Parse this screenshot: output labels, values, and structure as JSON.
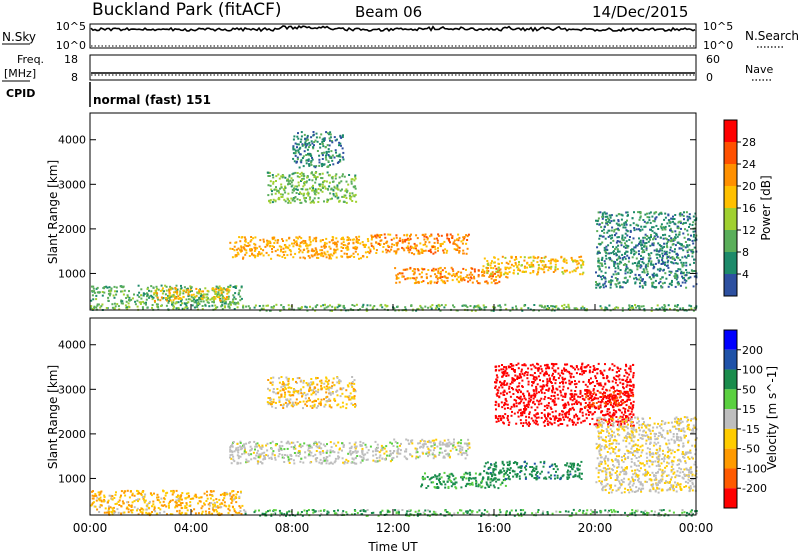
{
  "header": {
    "station": "Buckland Park (fitACF)",
    "beam": "Beam 06",
    "date": "14/Dec/2015"
  },
  "side_labels": {
    "nsky": "N.Sky",
    "nsearch": "N.Search",
    "freq_line1": "Freq.",
    "freq_line2": "[MHz]",
    "nave": "Nave",
    "cpid": "CPID",
    "cpid_text": "normal (fast) 151"
  },
  "noise_panel": {
    "left_ticks": [
      "10^5",
      "10^0"
    ],
    "right_ticks": [
      "10^5",
      "10^0"
    ]
  },
  "freq_panel": {
    "left_ticks": [
      "18",
      "8"
    ],
    "right_ticks": [
      "60",
      "0"
    ]
  },
  "colors": {
    "power_scale": [
      "#0000ff",
      "#2d50a0",
      "#1d8a6a",
      "#5aae5a",
      "#a0d030",
      "#ffc000",
      "#ff9000",
      "#ff5000",
      "#ff0000"
    ],
    "velocity_scale": [
      "#0000ff",
      "#1f52a8",
      "#1a8c4c",
      "#5bd040",
      "#bebebe",
      "#ffcc00",
      "#ff9a00",
      "#ff5a00",
      "#ff0000"
    ]
  },
  "chart_data": [
    {
      "type": "heatmap",
      "panel": "power",
      "xlabel": "Time UT",
      "ylabel": "Slant Range [km]",
      "x_ticks": [
        "00:00",
        "04:00",
        "08:00",
        "12:00",
        "16:00",
        "20:00",
        "00:00"
      ],
      "x_range_hours": [
        0,
        24
      ],
      "y_ticks": [
        1000,
        2000,
        3000,
        4000
      ],
      "ylim": [
        180,
        4600
      ],
      "colorbar_label": "Power [dB]",
      "colorbar_ticks": [
        4,
        8,
        12,
        16,
        20,
        24,
        28
      ],
      "colorbar_range": [
        0,
        32
      ],
      "echo_regions": [
        {
          "t0": 0.0,
          "t1": 6.0,
          "r0": 200,
          "r1": 750,
          "level": 12
        },
        {
          "t0": 2.5,
          "t1": 5.5,
          "r0": 400,
          "r1": 700,
          "level": 20
        },
        {
          "t0": 5.5,
          "t1": 11.0,
          "r0": 1350,
          "r1": 1850,
          "level": 22
        },
        {
          "t0": 11.0,
          "t1": 15.0,
          "r0": 1450,
          "r1": 1900,
          "level": 24
        },
        {
          "t0": 12.0,
          "t1": 16.5,
          "r0": 800,
          "r1": 1150,
          "level": 24
        },
        {
          "t0": 15.5,
          "t1": 19.5,
          "r0": 1000,
          "r1": 1400,
          "level": 20
        },
        {
          "t0": 7.0,
          "t1": 10.5,
          "r0": 2600,
          "r1": 3300,
          "level": 13
        },
        {
          "t0": 8.0,
          "t1": 10.0,
          "r0": 3400,
          "r1": 4200,
          "level": 8
        },
        {
          "t0": 20.0,
          "t1": 24.0,
          "r0": 700,
          "r1": 2400,
          "level": 8
        },
        {
          "t0": 6.0,
          "t1": 24.0,
          "r0": 180,
          "r1": 320,
          "level": 12
        }
      ]
    },
    {
      "type": "heatmap",
      "panel": "velocity",
      "xlabel": "Time UT",
      "ylabel": "Slant Range [km]",
      "x_ticks": [
        "00:00",
        "04:00",
        "08:00",
        "12:00",
        "16:00",
        "20:00",
        "00:00"
      ],
      "x_range_hours": [
        0,
        24
      ],
      "y_ticks": [
        1000,
        2000,
        3000,
        4000
      ],
      "ylim": [
        180,
        4600
      ],
      "colorbar_label": "Velocity [m s^-1]",
      "colorbar_ticks": [
        200,
        100,
        50,
        15,
        -15,
        -50,
        -100,
        -200
      ],
      "echo_regions": [
        {
          "t0": 0.0,
          "t1": 6.0,
          "r0": 200,
          "r1": 750,
          "v": -30
        },
        {
          "t0": 5.5,
          "t1": 12.0,
          "r0": 1350,
          "r1": 1850,
          "v": 0
        },
        {
          "t0": 12.0,
          "t1": 15.0,
          "r0": 1450,
          "r1": 1900,
          "v": 0
        },
        {
          "t0": 13.0,
          "t1": 16.5,
          "r0": 800,
          "r1": 1150,
          "v": 40
        },
        {
          "t0": 15.5,
          "t1": 19.5,
          "r0": 1000,
          "r1": 1400,
          "v": 60
        },
        {
          "t0": 16.0,
          "t1": 21.5,
          "r0": 2200,
          "r1": 3600,
          "v": -180
        },
        {
          "t0": 19.5,
          "t1": 21.5,
          "r0": 2600,
          "r1": 3000,
          "v": -150
        },
        {
          "t0": 7.0,
          "t1": 10.5,
          "r0": 2600,
          "r1": 3300,
          "v": -20
        },
        {
          "t0": 20.0,
          "t1": 24.0,
          "r0": 700,
          "r1": 2400,
          "v": -10
        },
        {
          "t0": 6.0,
          "t1": 24.0,
          "r0": 180,
          "r1": 320,
          "v": 30
        }
      ]
    }
  ]
}
